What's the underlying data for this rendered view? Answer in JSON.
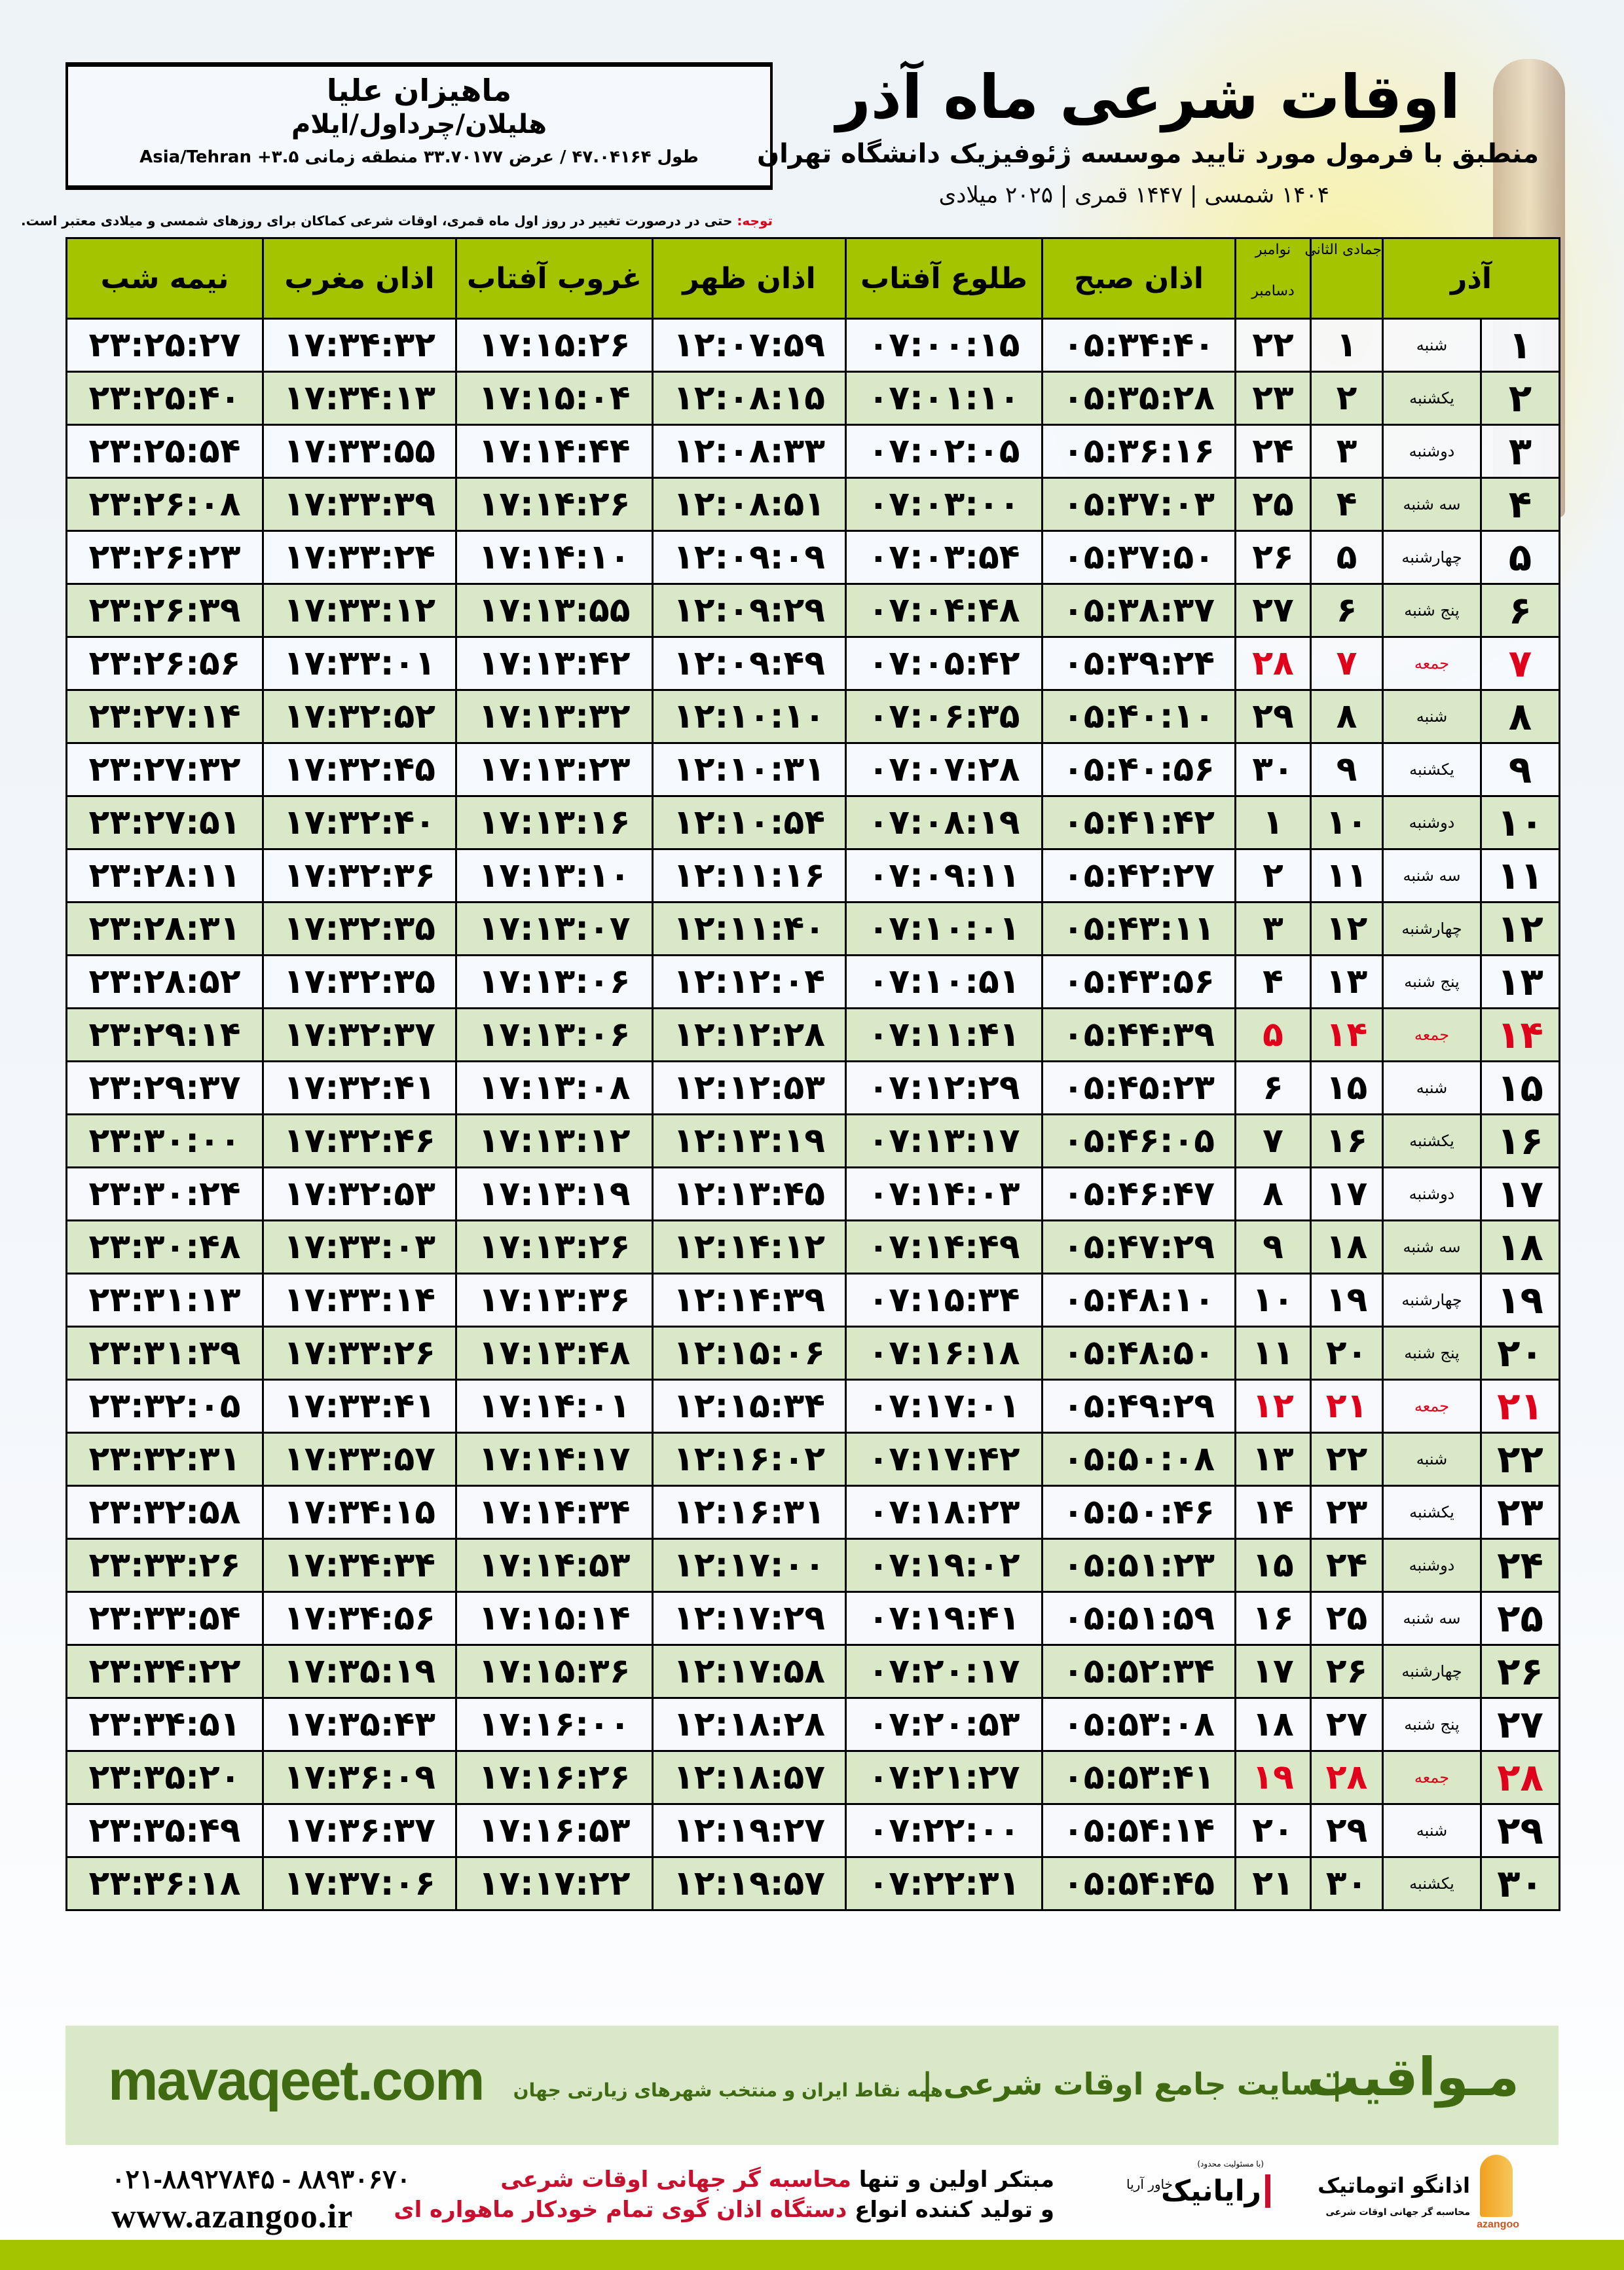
{
  "header": {
    "title": "اوقات شرعی ماه آذر",
    "subtitle": "منطبق با فرمول مورد تایید موسسه ژئوفیزیک دانشگاه تهران",
    "date_line": "۱۴۰۴ شمسی | ۱۴۴۷ قمری | ۲۰۲۵ میلادی"
  },
  "location": {
    "name": "ماهیزان علیا",
    "region": "هلیلان/چرداول/ایلام",
    "coords": "طول ۴۷.۰۴۱۶۴ / عرض ۳۳.۷۰۱۷۷ منطقه زمانی ۳.۵+ Asia/Tehran"
  },
  "note": {
    "label": "توجه:",
    "text": " حتی در درصورت تغییر در روز اول ماه قمری، اوقات شرعی کماکان برای روزهای شمسی و میلادی معتبر است."
  },
  "table": {
    "headers": {
      "azar": "آذر",
      "hijri": "جمادی الثانی",
      "greg_top": "نوامبر",
      "greg_bottom": "دسامبر",
      "fajr": "اذان صبح",
      "sunrise": "طلوع آفتاب",
      "dhuhr": "اذان ظهر",
      "sunset": "غروب آفتاب",
      "maghrib": "اذان مغرب",
      "midnight": "نیمه شب"
    },
    "holiday_color": "#e0001b",
    "header_color": "#a5c400",
    "rows": [
      {
        "day": "۱",
        "weekday": "شنبه",
        "hijri": "۱",
        "greg": "۲۲",
        "fajr": "۰۵:۳۴:۴۰",
        "sunrise": "۰۷:۰۰:۱۵",
        "dhuhr": "۱۲:۰۷:۵۹",
        "sunset": "۱۷:۱۵:۲۶",
        "maghrib": "۱۷:۳۴:۳۲",
        "midnight": "۲۳:۲۵:۲۷"
      },
      {
        "day": "۲",
        "weekday": "یکشنبه",
        "hijri": "۲",
        "greg": "۲۳",
        "fajr": "۰۵:۳۵:۲۸",
        "sunrise": "۰۷:۰۱:۱۰",
        "dhuhr": "۱۲:۰۸:۱۵",
        "sunset": "۱۷:۱۵:۰۴",
        "maghrib": "۱۷:۳۴:۱۳",
        "midnight": "۲۳:۲۵:۴۰"
      },
      {
        "day": "۳",
        "weekday": "دوشنبه",
        "hijri": "۳",
        "greg": "۲۴",
        "fajr": "۰۵:۳۶:۱۶",
        "sunrise": "۰۷:۰۲:۰۵",
        "dhuhr": "۱۲:۰۸:۳۳",
        "sunset": "۱۷:۱۴:۴۴",
        "maghrib": "۱۷:۳۳:۵۵",
        "midnight": "۲۳:۲۵:۵۴"
      },
      {
        "day": "۴",
        "weekday": "سه شنبه",
        "hijri": "۴",
        "greg": "۲۵",
        "fajr": "۰۵:۳۷:۰۳",
        "sunrise": "۰۷:۰۳:۰۰",
        "dhuhr": "۱۲:۰۸:۵۱",
        "sunset": "۱۷:۱۴:۲۶",
        "maghrib": "۱۷:۳۳:۳۹",
        "midnight": "۲۳:۲۶:۰۸"
      },
      {
        "day": "۵",
        "weekday": "چهارشنبه",
        "hijri": "۵",
        "greg": "۲۶",
        "fajr": "۰۵:۳۷:۵۰",
        "sunrise": "۰۷:۰۳:۵۴",
        "dhuhr": "۱۲:۰۹:۰۹",
        "sunset": "۱۷:۱۴:۱۰",
        "maghrib": "۱۷:۳۳:۲۴",
        "midnight": "۲۳:۲۶:۲۳"
      },
      {
        "day": "۶",
        "weekday": "پنج شنبه",
        "hijri": "۶",
        "greg": "۲۷",
        "fajr": "۰۵:۳۸:۳۷",
        "sunrise": "۰۷:۰۴:۴۸",
        "dhuhr": "۱۲:۰۹:۲۹",
        "sunset": "۱۷:۱۳:۵۵",
        "maghrib": "۱۷:۳۳:۱۲",
        "midnight": "۲۳:۲۶:۳۹"
      },
      {
        "day": "۷",
        "weekday": "جمعه",
        "hijri": "۷",
        "greg": "۲۸",
        "fajr": "۰۵:۳۹:۲۴",
        "sunrise": "۰۷:۰۵:۴۲",
        "dhuhr": "۱۲:۰۹:۴۹",
        "sunset": "۱۷:۱۳:۴۲",
        "maghrib": "۱۷:۳۳:۰۱",
        "midnight": "۲۳:۲۶:۵۶",
        "holiday": true
      },
      {
        "day": "۸",
        "weekday": "شنبه",
        "hijri": "۸",
        "greg": "۲۹",
        "fajr": "۰۵:۴۰:۱۰",
        "sunrise": "۰۷:۰۶:۳۵",
        "dhuhr": "۱۲:۱۰:۱۰",
        "sunset": "۱۷:۱۳:۳۲",
        "maghrib": "۱۷:۳۲:۵۲",
        "midnight": "۲۳:۲۷:۱۴"
      },
      {
        "day": "۹",
        "weekday": "یکشنبه",
        "hijri": "۹",
        "greg": "۳۰",
        "fajr": "۰۵:۴۰:۵۶",
        "sunrise": "۰۷:۰۷:۲۸",
        "dhuhr": "۱۲:۱۰:۳۱",
        "sunset": "۱۷:۱۳:۲۳",
        "maghrib": "۱۷:۳۲:۴۵",
        "midnight": "۲۳:۲۷:۳۲"
      },
      {
        "day": "۱۰",
        "weekday": "دوشنبه",
        "hijri": "۱۰",
        "greg": "۱",
        "fajr": "۰۵:۴۱:۴۲",
        "sunrise": "۰۷:۰۸:۱۹",
        "dhuhr": "۱۲:۱۰:۵۴",
        "sunset": "۱۷:۱۳:۱۶",
        "maghrib": "۱۷:۳۲:۴۰",
        "midnight": "۲۳:۲۷:۵۱"
      },
      {
        "day": "۱۱",
        "weekday": "سه شنبه",
        "hijri": "۱۱",
        "greg": "۲",
        "fajr": "۰۵:۴۲:۲۷",
        "sunrise": "۰۷:۰۹:۱۱",
        "dhuhr": "۱۲:۱۱:۱۶",
        "sunset": "۱۷:۱۳:۱۰",
        "maghrib": "۱۷:۳۲:۳۶",
        "midnight": "۲۳:۲۸:۱۱"
      },
      {
        "day": "۱۲",
        "weekday": "چهارشنبه",
        "hijri": "۱۲",
        "greg": "۳",
        "fajr": "۰۵:۴۳:۱۱",
        "sunrise": "۰۷:۱۰:۰۱",
        "dhuhr": "۱۲:۱۱:۴۰",
        "sunset": "۱۷:۱۳:۰۷",
        "maghrib": "۱۷:۳۲:۳۵",
        "midnight": "۲۳:۲۸:۳۱"
      },
      {
        "day": "۱۳",
        "weekday": "پنج شنبه",
        "hijri": "۱۳",
        "greg": "۴",
        "fajr": "۰۵:۴۳:۵۶",
        "sunrise": "۰۷:۱۰:۵۱",
        "dhuhr": "۱۲:۱۲:۰۴",
        "sunset": "۱۷:۱۳:۰۶",
        "maghrib": "۱۷:۳۲:۳۵",
        "midnight": "۲۳:۲۸:۵۲"
      },
      {
        "day": "۱۴",
        "weekday": "جمعه",
        "hijri": "۱۴",
        "greg": "۵",
        "fajr": "۰۵:۴۴:۳۹",
        "sunrise": "۰۷:۱۱:۴۱",
        "dhuhr": "۱۲:۱۲:۲۸",
        "sunset": "۱۷:۱۳:۰۶",
        "maghrib": "۱۷:۳۲:۳۷",
        "midnight": "۲۳:۲۹:۱۴",
        "holiday": true
      },
      {
        "day": "۱۵",
        "weekday": "شنبه",
        "hijri": "۱۵",
        "greg": "۶",
        "fajr": "۰۵:۴۵:۲۳",
        "sunrise": "۰۷:۱۲:۲۹",
        "dhuhr": "۱۲:۱۲:۵۳",
        "sunset": "۱۷:۱۳:۰۸",
        "maghrib": "۱۷:۳۲:۴۱",
        "midnight": "۲۳:۲۹:۳۷"
      },
      {
        "day": "۱۶",
        "weekday": "یکشنبه",
        "hijri": "۱۶",
        "greg": "۷",
        "fajr": "۰۵:۴۶:۰۵",
        "sunrise": "۰۷:۱۳:۱۷",
        "dhuhr": "۱۲:۱۳:۱۹",
        "sunset": "۱۷:۱۳:۱۲",
        "maghrib": "۱۷:۳۲:۴۶",
        "midnight": "۲۳:۳۰:۰۰"
      },
      {
        "day": "۱۷",
        "weekday": "دوشنبه",
        "hijri": "۱۷",
        "greg": "۸",
        "fajr": "۰۵:۴۶:۴۷",
        "sunrise": "۰۷:۱۴:۰۳",
        "dhuhr": "۱۲:۱۳:۴۵",
        "sunset": "۱۷:۱۳:۱۹",
        "maghrib": "۱۷:۳۲:۵۳",
        "midnight": "۲۳:۳۰:۲۴"
      },
      {
        "day": "۱۸",
        "weekday": "سه شنبه",
        "hijri": "۱۸",
        "greg": "۹",
        "fajr": "۰۵:۴۷:۲۹",
        "sunrise": "۰۷:۱۴:۴۹",
        "dhuhr": "۱۲:۱۴:۱۲",
        "sunset": "۱۷:۱۳:۲۶",
        "maghrib": "۱۷:۳۳:۰۳",
        "midnight": "۲۳:۳۰:۴۸"
      },
      {
        "day": "۱۹",
        "weekday": "چهارشنبه",
        "hijri": "۱۹",
        "greg": "۱۰",
        "fajr": "۰۵:۴۸:۱۰",
        "sunrise": "۰۷:۱۵:۳۴",
        "dhuhr": "۱۲:۱۴:۳۹",
        "sunset": "۱۷:۱۳:۳۶",
        "maghrib": "۱۷:۳۳:۱۴",
        "midnight": "۲۳:۳۱:۱۳"
      },
      {
        "day": "۲۰",
        "weekday": "پنج شنبه",
        "hijri": "۲۰",
        "greg": "۱۱",
        "fajr": "۰۵:۴۸:۵۰",
        "sunrise": "۰۷:۱۶:۱۸",
        "dhuhr": "۱۲:۱۵:۰۶",
        "sunset": "۱۷:۱۳:۴۸",
        "maghrib": "۱۷:۳۳:۲۶",
        "midnight": "۲۳:۳۱:۳۹"
      },
      {
        "day": "۲۱",
        "weekday": "جمعه",
        "hijri": "۲۱",
        "greg": "۱۲",
        "fajr": "۰۵:۴۹:۲۹",
        "sunrise": "۰۷:۱۷:۰۱",
        "dhuhr": "۱۲:۱۵:۳۴",
        "sunset": "۱۷:۱۴:۰۱",
        "maghrib": "۱۷:۳۳:۴۱",
        "midnight": "۲۳:۳۲:۰۵",
        "holiday": true
      },
      {
        "day": "۲۲",
        "weekday": "شنبه",
        "hijri": "۲۲",
        "greg": "۱۳",
        "fajr": "۰۵:۵۰:۰۸",
        "sunrise": "۰۷:۱۷:۴۲",
        "dhuhr": "۱۲:۱۶:۰۲",
        "sunset": "۱۷:۱۴:۱۷",
        "maghrib": "۱۷:۳۳:۵۷",
        "midnight": "۲۳:۳۲:۳۱"
      },
      {
        "day": "۲۳",
        "weekday": "یکشنبه",
        "hijri": "۲۳",
        "greg": "۱۴",
        "fajr": "۰۵:۵۰:۴۶",
        "sunrise": "۰۷:۱۸:۲۳",
        "dhuhr": "۱۲:۱۶:۳۱",
        "sunset": "۱۷:۱۴:۳۴",
        "maghrib": "۱۷:۳۴:۱۵",
        "midnight": "۲۳:۳۲:۵۸"
      },
      {
        "day": "۲۴",
        "weekday": "دوشنبه",
        "hijri": "۲۴",
        "greg": "۱۵",
        "fajr": "۰۵:۵۱:۲۳",
        "sunrise": "۰۷:۱۹:۰۲",
        "dhuhr": "۱۲:۱۷:۰۰",
        "sunset": "۱۷:۱۴:۵۳",
        "maghrib": "۱۷:۳۴:۳۴",
        "midnight": "۲۳:۳۳:۲۶"
      },
      {
        "day": "۲۵",
        "weekday": "سه شنبه",
        "hijri": "۲۵",
        "greg": "۱۶",
        "fajr": "۰۵:۵۱:۵۹",
        "sunrise": "۰۷:۱۹:۴۱",
        "dhuhr": "۱۲:۱۷:۲۹",
        "sunset": "۱۷:۱۵:۱۴",
        "maghrib": "۱۷:۳۴:۵۶",
        "midnight": "۲۳:۳۳:۵۴"
      },
      {
        "day": "۲۶",
        "weekday": "چهارشنبه",
        "hijri": "۲۶",
        "greg": "۱۷",
        "fajr": "۰۵:۵۲:۳۴",
        "sunrise": "۰۷:۲۰:۱۷",
        "dhuhr": "۱۲:۱۷:۵۸",
        "sunset": "۱۷:۱۵:۳۶",
        "maghrib": "۱۷:۳۵:۱۹",
        "midnight": "۲۳:۳۴:۲۲"
      },
      {
        "day": "۲۷",
        "weekday": "پنج شنبه",
        "hijri": "۲۷",
        "greg": "۱۸",
        "fajr": "۰۵:۵۳:۰۸",
        "sunrise": "۰۷:۲۰:۵۳",
        "dhuhr": "۱۲:۱۸:۲۸",
        "sunset": "۱۷:۱۶:۰۰",
        "maghrib": "۱۷:۳۵:۴۳",
        "midnight": "۲۳:۳۴:۵۱"
      },
      {
        "day": "۲۸",
        "weekday": "جمعه",
        "hijri": "۲۸",
        "greg": "۱۹",
        "fajr": "۰۵:۵۳:۴۱",
        "sunrise": "۰۷:۲۱:۲۷",
        "dhuhr": "۱۲:۱۸:۵۷",
        "sunset": "۱۷:۱۶:۲۶",
        "maghrib": "۱۷:۳۶:۰۹",
        "midnight": "۲۳:۳۵:۲۰",
        "holiday": true
      },
      {
        "day": "۲۹",
        "weekday": "شنبه",
        "hijri": "۲۹",
        "greg": "۲۰",
        "fajr": "۰۵:۵۴:۱۴",
        "sunrise": "۰۷:۲۲:۰۰",
        "dhuhr": "۱۲:۱۹:۲۷",
        "sunset": "۱۷:۱۶:۵۳",
        "maghrib": "۱۷:۳۶:۳۷",
        "midnight": "۲۳:۳۵:۴۹"
      },
      {
        "day": "۳۰",
        "weekday": "یکشنبه",
        "hijri": "۳۰",
        "greg": "۲۱",
        "fajr": "۰۵:۵۴:۴۵",
        "sunrise": "۰۷:۲۲:۳۱",
        "dhuhr": "۱۲:۱۹:۵۷",
        "sunset": "۱۷:۱۷:۲۲",
        "maghrib": "۱۷:۳۷:۰۶",
        "midnight": "۲۳:۳۶:۱۸"
      }
    ]
  },
  "promo": {
    "brand": "مـواقیت",
    "tagline": "| سایت جامع اوقات شرعی |",
    "sub": "همه نقاط ایران و منتخب شهرهای زیارتی جهان",
    "url": "mavaqeet.com",
    "color": "#3f6a12"
  },
  "footer": {
    "phone": "۰۲۱-۸۸۹۲۷۸۴۵ - ۸۸۹۳۰۶۷۰",
    "website": "www.azangoo.ir",
    "slogan_line1_a": "مبتکر اولین و تنها ",
    "slogan_line1_b": "محاسبه گر جهانی اوقات شرعی",
    "slogan_line2_a": "و تولید کننده انواع ",
    "slogan_line2_b": "دستگاه اذان گوی تمام خودکار ماهواره ای",
    "rayanik_logo": "رایانیک",
    "rayanik_small": "(با مسئولیت محدود)",
    "rayanik_side": "خاور آریا",
    "azangoo_logo": "اذانگو اتوماتیک",
    "azangoo_latin": "azangoo",
    "azangoo_tag": "محاسبه گر جهانی اوقات شرعی"
  }
}
